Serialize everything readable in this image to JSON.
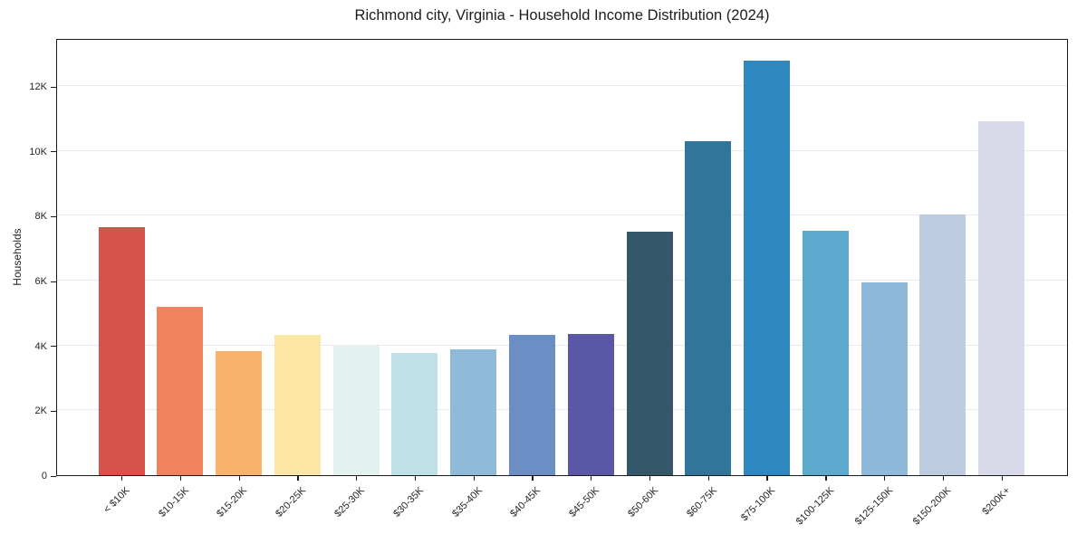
{
  "figure": {
    "title": "Richmond city, Virginia - Household Income Distribution (2024)"
  },
  "chart_data": {
    "type": "bar",
    "title": "Richmond city, Virginia - Household Income Distribution (2024)",
    "xlabel": "",
    "ylabel": "Households",
    "categories": [
      "< $10K",
      "$10-15K",
      "$15-20K",
      "$20-25K",
      "$25-30K",
      "$30-35K",
      "$35-40K",
      "$40-45K",
      "$45-50K",
      "$50-60K",
      "$60-75K",
      "$75-100K",
      "$100-125K",
      "$125-150K",
      "$150-200K",
      "$200K+"
    ],
    "values": [
      7640,
      5190,
      3830,
      4340,
      3980,
      3780,
      3880,
      4340,
      4360,
      7500,
      10290,
      12790,
      7540,
      5950,
      8030,
      10920
    ],
    "bar_colors": [
      "#d6534c",
      "#f0835e",
      "#f8b26c",
      "#fce6a4",
      "#e3f1ef",
      "#bfdfe9",
      "#8fbad8",
      "#6b8fc5",
      "#5b57a7",
      "#34576a",
      "#32759a",
      "#2f87c0",
      "#5da8cd",
      "#8fb9da",
      "#becce1",
      "#d9dae9"
    ],
    "ylim": [
      0,
      13480
    ],
    "yticks": [
      {
        "value": 0,
        "label": "0"
      },
      {
        "value": 2000,
        "label": "2K"
      },
      {
        "value": 4000,
        "label": "4K"
      },
      {
        "value": 6000,
        "label": "6K"
      },
      {
        "value": 8000,
        "label": "8K"
      },
      {
        "value": 10000,
        "label": "10K"
      },
      {
        "value": 12000,
        "label": "12K"
      }
    ],
    "grid": "horizontal",
    "legend_position": "none",
    "colors": {
      "background": "#ffffff",
      "gridline": "#e8e8ee",
      "spine": "#1a1a1a",
      "tick_label": "#262626",
      "title": "#1c1c1c"
    }
  }
}
